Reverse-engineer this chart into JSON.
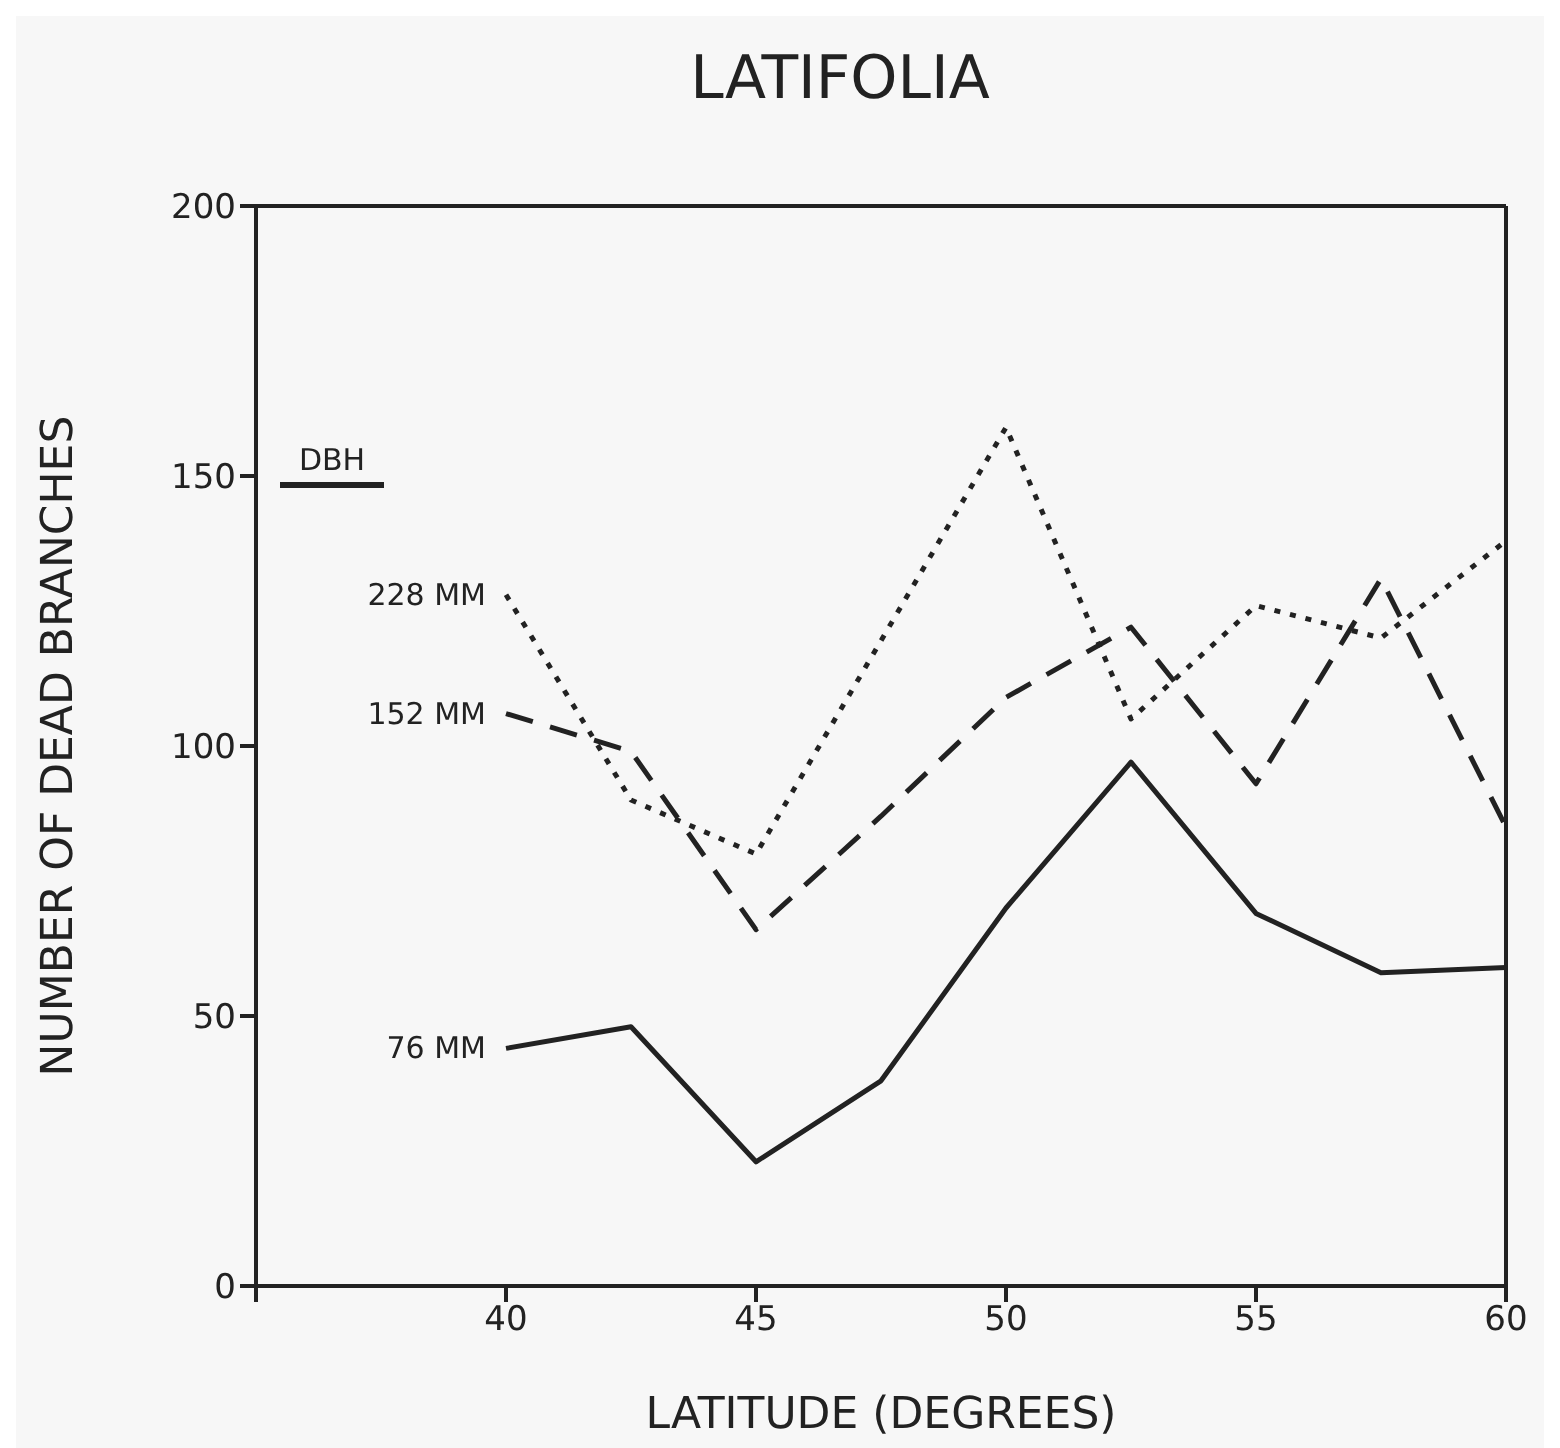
{
  "chart_data": {
    "type": "line",
    "title": "LATIFOLIA",
    "xlabel": "LATITUDE (DEGREES)",
    "ylabel": "NUMBER OF DEAD BRANCHES",
    "legend_title": "DBH",
    "xlim": [
      35,
      60
    ],
    "xticks": [
      {
        "value": 35,
        "label": null
      },
      40,
      45,
      50,
      55,
      60
    ],
    "ylim": [
      0,
      200
    ],
    "yticks": [
      0,
      50,
      100,
      150,
      200
    ],
    "marker": "none",
    "series": [
      {
        "name": "228 MM",
        "color": "#222222",
        "line_style": "dotted",
        "x": [
          40,
          42.5,
          45,
          50,
          52.5,
          55,
          57.5,
          60
        ],
        "values": [
          128,
          90,
          80,
          159,
          105,
          126,
          120,
          138
        ]
      },
      {
        "name": "152 MM",
        "color": "#222222",
        "line_style": "dashed",
        "x": [
          40,
          42.5,
          45,
          47.5,
          50,
          52.5,
          55,
          57.5,
          60
        ],
        "values": [
          106,
          99,
          66,
          87,
          109,
          122,
          93,
          131,
          85
        ]
      },
      {
        "name": "76 MM",
        "color": "#222222",
        "line_style": "solid",
        "x": [
          40,
          42.5,
          45,
          47.5,
          50,
          52.5,
          55,
          57.5,
          60
        ],
        "values": [
          44,
          48,
          23,
          38,
          70,
          97,
          69,
          58,
          59
        ]
      }
    ]
  }
}
